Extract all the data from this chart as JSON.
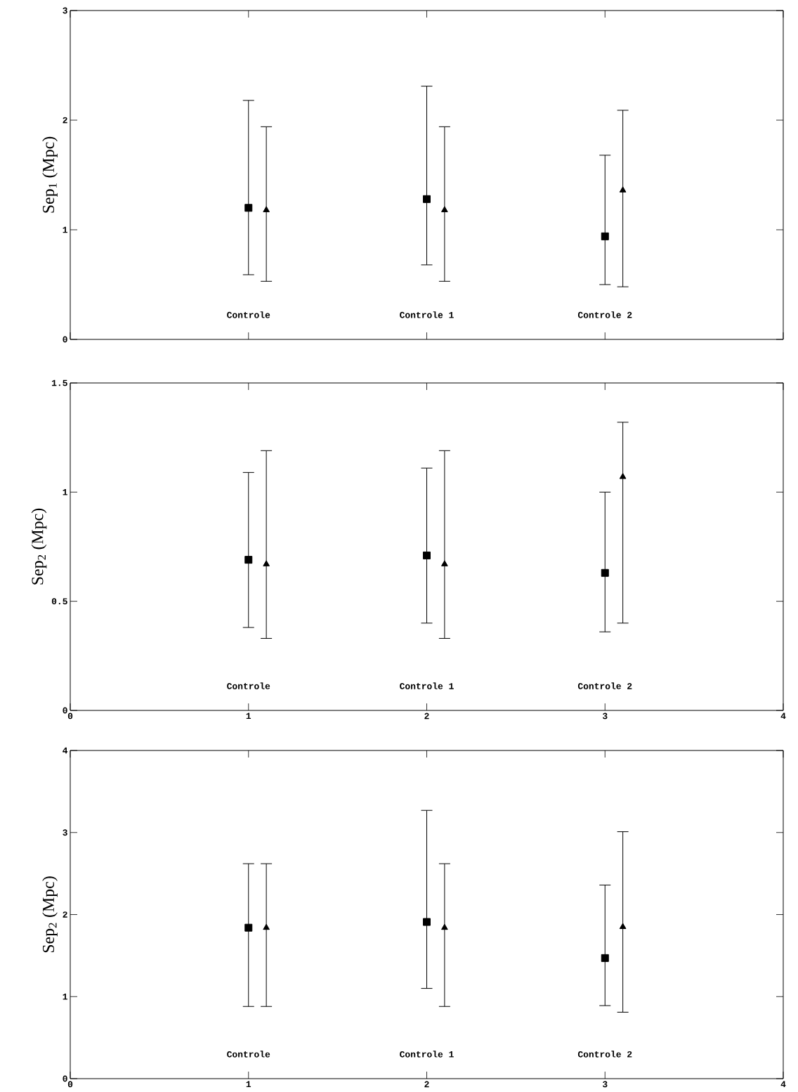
{
  "chart_data": [
    {
      "type": "scatter",
      "ylabel": "Sep$_{1}$ (Mpc)",
      "xlim": [
        0,
        4
      ],
      "xticks": [
        0,
        1,
        2,
        3,
        4
      ],
      "ylim": [
        0,
        3
      ],
      "yticks": [
        0,
        1,
        2,
        3
      ],
      "tick_labels": "y",
      "annotations": [
        "Controle",
        "Controle 1",
        "Controle 2"
      ],
      "series": [
        {
          "color": "#000000",
          "marker": "square",
          "x": [
            1,
            2,
            3
          ],
          "values": [
            1.2,
            1.28,
            0.94
          ],
          "errors": [
            [
              0.59,
              2.18
            ],
            [
              0.68,
              2.31
            ],
            [
              0.5,
              1.68
            ]
          ]
        },
        {
          "color": "#000000",
          "marker": "triangle",
          "x": [
            1.1,
            2.1,
            3.1
          ],
          "values": [
            1.18,
            1.18,
            1.36
          ],
          "errors": [
            [
              0.53,
              1.94
            ],
            [
              0.53,
              1.94
            ],
            [
              0.48,
              2.09
            ]
          ]
        }
      ]
    },
    {
      "type": "scatter",
      "ylabel": "Sep$_{2}$ (Mpc)",
      "xlim": [
        0,
        4
      ],
      "xticks": [
        0,
        1,
        2,
        3,
        4
      ],
      "ylim": [
        0,
        1.5
      ],
      "yticks": [
        0,
        0.5,
        1,
        1.5
      ],
      "annotations": [
        "Controle",
        "Controle 1",
        "Controle 2"
      ],
      "series": [
        {
          "color": "#000000",
          "marker": "square",
          "x": [
            1,
            2,
            3
          ],
          "values": [
            0.69,
            0.71,
            0.63
          ],
          "errors": [
            [
              0.38,
              1.09
            ],
            [
              0.4,
              1.11
            ],
            [
              0.36,
              1.0
            ]
          ]
        },
        {
          "color": "#000000",
          "marker": "triangle",
          "x": [
            1.1,
            2.1,
            3.1
          ],
          "values": [
            0.67,
            0.67,
            1.07
          ],
          "errors": [
            [
              0.33,
              1.19
            ],
            [
              0.33,
              1.19
            ],
            [
              0.4,
              1.32
            ]
          ]
        }
      ]
    },
    {
      "type": "scatter",
      "ylabel": "Sep$_{2}$ (Mpc)",
      "xlim": [
        0,
        4
      ],
      "xticks": [
        0,
        1,
        2,
        3,
        4
      ],
      "ylim": [
        0,
        4
      ],
      "yticks": [
        0,
        1,
        2,
        3,
        4
      ],
      "annotations": [
        "Controle",
        "Controle 1",
        "Controle 2"
      ],
      "series": [
        {
          "color": "#000000",
          "marker": "square",
          "x": [
            1,
            2,
            3
          ],
          "values": [
            1.84,
            1.91,
            1.47
          ],
          "errors": [
            [
              0.88,
              2.62
            ],
            [
              1.1,
              3.27
            ],
            [
              0.89,
              2.36
            ]
          ]
        },
        {
          "color": "#000000",
          "marker": "triangle",
          "x": [
            1.1,
            2.1,
            3.1
          ],
          "values": [
            1.84,
            1.84,
            1.85
          ],
          "errors": [
            [
              0.88,
              2.62
            ],
            [
              0.88,
              2.62
            ],
            [
              0.81,
              3.01
            ]
          ]
        }
      ]
    }
  ]
}
